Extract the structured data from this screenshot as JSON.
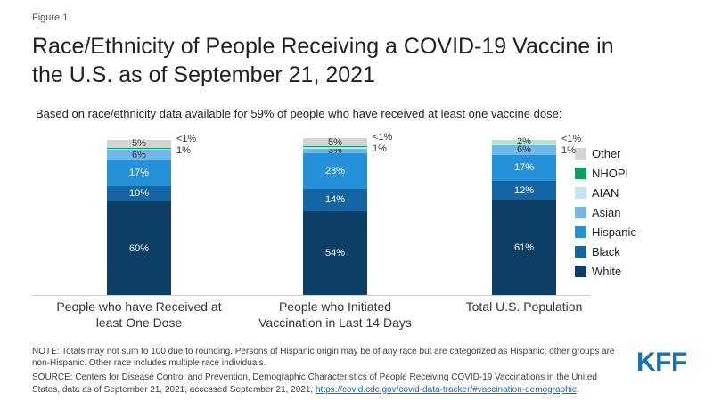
{
  "figure_label": "Figure 1",
  "title": "Race/Ethnicity of People Receiving a COVID-19 Vaccine in\nthe U.S. as of September 21, 2021",
  "subtitle": "Based on race/ethnicity data available for 59% of people who have received at least one vaccine dose:",
  "chart_data": {
    "type": "stacked-bar",
    "stack_order_bottom_to_top": [
      "White",
      "Black",
      "Hispanic",
      "Asian",
      "AIAN",
      "NHOPI",
      "Other"
    ],
    "categories": [
      "People who have Received at\nleast One Dose",
      "People who Initiated\nVaccination in Last 14 Days",
      "Total U.S. Population"
    ],
    "series": [
      {
        "name": "White",
        "color": "#0d3f66",
        "values": [
          60,
          54,
          61
        ],
        "labels": [
          "60%",
          "54%",
          "61%"
        ],
        "label_style": "light"
      },
      {
        "name": "Black",
        "color": "#1365a4",
        "values": [
          10,
          14,
          12
        ],
        "labels": [
          "10%",
          "14%",
          "12%"
        ],
        "label_style": "light"
      },
      {
        "name": "Hispanic",
        "color": "#2491d9",
        "values": [
          17,
          23,
          17
        ],
        "labels": [
          "17%",
          "23%",
          "17%"
        ],
        "label_style": "light"
      },
      {
        "name": "Asian",
        "color": "#70b8e8",
        "values": [
          6,
          3,
          6
        ],
        "labels": [
          "6%",
          "3%",
          "6%"
        ],
        "label_style": "dark"
      },
      {
        "name": "AIAN",
        "color": "#c6e3f5",
        "values": [
          1,
          1,
          1
        ],
        "labels": [
          "1%",
          "1%",
          "1%"
        ],
        "label_outside": true
      },
      {
        "name": "NHOPI",
        "color": "#00a45d",
        "values": [
          0.5,
          0.5,
          0.5
        ],
        "labels": [
          "<1%",
          "<1%",
          "<1%"
        ],
        "label_outside": true
      },
      {
        "name": "Other",
        "color": "#d4d4d4",
        "values": [
          5,
          5,
          2
        ],
        "labels": [
          "5%",
          "5%",
          "2%"
        ],
        "label_style": "dark"
      }
    ],
    "legend_top_to_bottom": [
      "Other",
      "NHOPI",
      "AIAN",
      "Asian",
      "Hispanic",
      "Black",
      "White"
    ],
    "ylim": [
      0,
      100
    ],
    "grid": false,
    "legend_position": "right"
  },
  "notes": {
    "note": "NOTE: Totals may not sum to 100 due to rounding. Persons of Hispanic origin may be of any race but are categorized as Hispanic; other groups are non-Hispanic. Other race includes multiple race individuals.",
    "source_prefix": "SOURCE: Centers for Disease Control and Prevention, Demographic Characteristics of People Receiving COVID-19 Vaccinations in the United States, data as of September 21, 2021, accessed September 21, 2021, ",
    "source_link": "https://covid.cdc.gov/covid-data-tracker/#vaccination-demographic",
    "source_suffix": "."
  },
  "branding": {
    "logo_text": "KFF"
  }
}
